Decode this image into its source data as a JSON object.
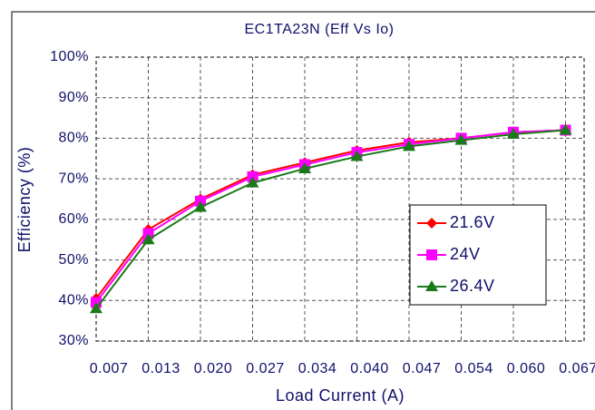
{
  "chart_data": {
    "type": "line",
    "title": "EC1TA23N  (Eff Vs Io)",
    "x_label": "Load Current (A)",
    "y_label": "Efficiency (%)",
    "categories": [
      "0.007",
      "0.013",
      "0.020",
      "0.027",
      "0.034",
      "0.040",
      "0.047",
      "0.054",
      "0.060",
      "0.067"
    ],
    "series": [
      {
        "name": "21.6V",
        "color": "#ff0000",
        "marker": "diamond",
        "values": [
          40.5,
          57.5,
          65,
          71,
          74,
          77,
          79,
          80,
          81.5,
          82
        ]
      },
      {
        "name": "24V",
        "color": "#ff00ff",
        "marker": "square",
        "values": [
          39.5,
          56.5,
          64.5,
          70.5,
          73.5,
          76.5,
          78.5,
          80,
          81.5,
          82
        ]
      },
      {
        "name": "26.4V",
        "color": "#1a7a1a",
        "marker": "triangle",
        "values": [
          38,
          55,
          63,
          69,
          72.5,
          75.5,
          78,
          79.5,
          81,
          82
        ]
      }
    ],
    "ylim": [
      30,
      100
    ],
    "yticks": [
      {
        "value": 30,
        "label": "30%"
      },
      {
        "value": 40,
        "label": "40%"
      },
      {
        "value": 50,
        "label": "50%"
      },
      {
        "value": 60,
        "label": "60%"
      },
      {
        "value": 70,
        "label": "70%"
      },
      {
        "value": 80,
        "label": "80%"
      },
      {
        "value": 90,
        "label": "90%"
      },
      {
        "value": 100,
        "label": "100%"
      }
    ],
    "grid": true,
    "legend": "lower right"
  }
}
